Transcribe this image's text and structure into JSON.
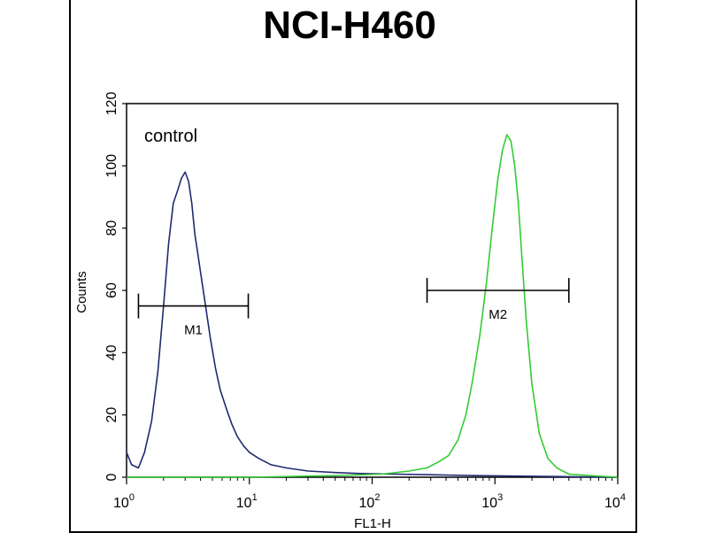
{
  "chart_data": {
    "type": "line",
    "title": "NCI-H460",
    "xlabel": "FL1-H",
    "ylabel": "Counts",
    "xscale": "log",
    "xlim": [
      1,
      10000
    ],
    "ylim": [
      0,
      120
    ],
    "x_ticks": [
      {
        "value": 1,
        "base": "10",
        "exp": "0"
      },
      {
        "value": 10,
        "base": "10",
        "exp": "1"
      },
      {
        "value": 100,
        "base": "10",
        "exp": "2"
      },
      {
        "value": 1000,
        "base": "10",
        "exp": "3"
      },
      {
        "value": 10000,
        "base": "10",
        "exp": "4"
      }
    ],
    "y_ticks": [
      0,
      20,
      40,
      60,
      80,
      100,
      120
    ],
    "annotation": "control",
    "gates": [
      {
        "name": "M1",
        "x_start": 1.25,
        "x_end": 9.8,
        "y": 55
      },
      {
        "name": "M2",
        "x_start": 280,
        "x_end": 4000,
        "y": 60
      }
    ],
    "series": [
      {
        "color": "#1f2a6e",
        "x": [
          1,
          1.1,
          1.25,
          1.4,
          1.6,
          1.8,
          2.0,
          2.2,
          2.4,
          2.6,
          2.8,
          3.0,
          3.2,
          3.4,
          3.6,
          3.8,
          4.0,
          4.4,
          4.8,
          5.3,
          5.8,
          6.5,
          7.2,
          8,
          9,
          10,
          12,
          15,
          20,
          30,
          50,
          80,
          150,
          300,
          700,
          2000,
          10000
        ],
        "y": [
          8,
          4,
          3,
          8,
          18,
          34,
          55,
          75,
          88,
          92,
          96,
          98,
          95,
          88,
          78,
          72,
          66,
          55,
          45,
          35,
          28,
          22,
          17,
          13,
          10,
          8,
          6,
          4,
          3,
          2,
          1.5,
          1.2,
          1,
          0.8,
          0.5,
          0.3,
          0
        ]
      },
      {
        "color": "#33cc33",
        "x": [
          1,
          10,
          50,
          120,
          200,
          280,
          350,
          420,
          500,
          580,
          650,
          750,
          850,
          950,
          1050,
          1150,
          1250,
          1350,
          1450,
          1550,
          1650,
          1800,
          2000,
          2300,
          2700,
          3200,
          4000,
          6000,
          10000
        ],
        "y": [
          0,
          0,
          0.5,
          1,
          2,
          3,
          5,
          7,
          12,
          20,
          30,
          45,
          62,
          80,
          95,
          105,
          110,
          108,
          100,
          88,
          72,
          50,
          30,
          14,
          6,
          3,
          1,
          0.5,
          0
        ]
      }
    ]
  }
}
